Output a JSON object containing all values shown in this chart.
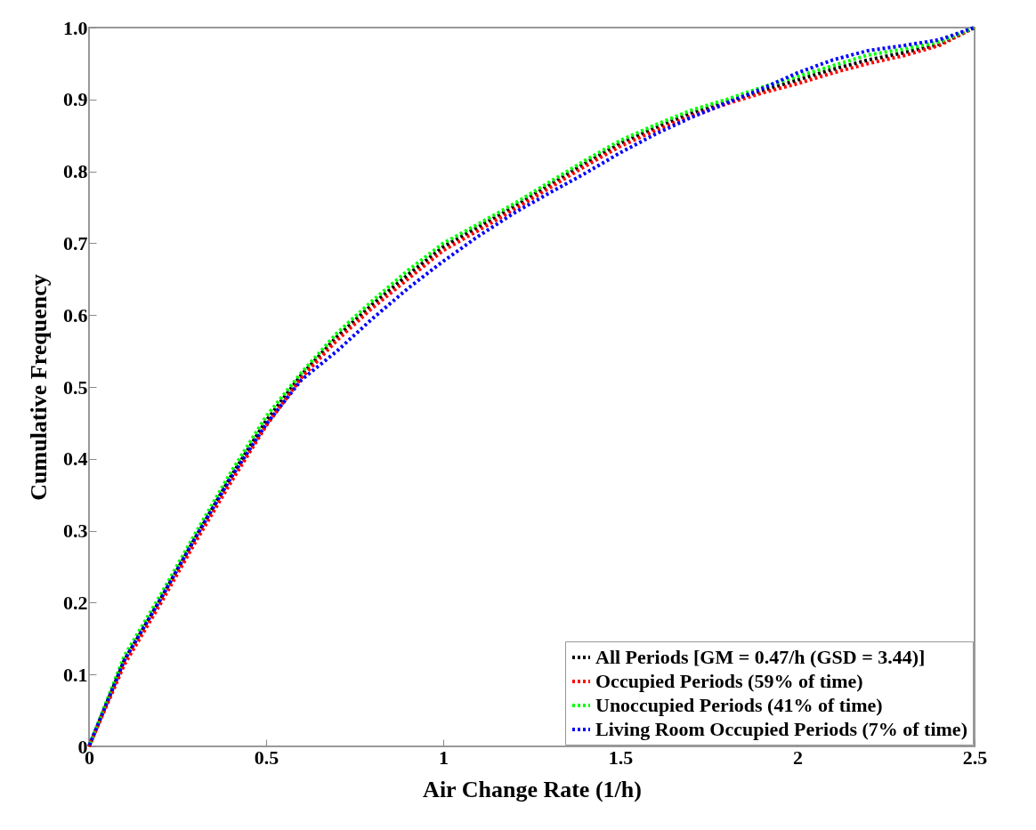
{
  "chart_data": {
    "type": "line",
    "xlabel": "Air Change Rate (1/h)",
    "ylabel": "Cumulative Frequency",
    "x": [
      0,
      0.1,
      0.2,
      0.3,
      0.4,
      0.5,
      0.6,
      0.7,
      0.8,
      0.9,
      1.0,
      1.1,
      1.2,
      1.3,
      1.4,
      1.5,
      1.6,
      1.7,
      1.8,
      1.9,
      2.0,
      2.1,
      2.2,
      2.3,
      2.4,
      2.5
    ],
    "series": [
      {
        "name": "All Periods [GM = 0.47/h (GSD = 3.44)]",
        "color": "#000000",
        "values": [
          0,
          0.12,
          0.203,
          0.29,
          0.375,
          0.453,
          0.517,
          0.57,
          0.615,
          0.656,
          0.695,
          0.723,
          0.751,
          0.781,
          0.811,
          0.839,
          0.861,
          0.881,
          0.897,
          0.912,
          0.927,
          0.942,
          0.955,
          0.965,
          0.977,
          1.0
        ]
      },
      {
        "name": "Occupied Periods (59% of time)",
        "color": "#ff0000",
        "values": [
          0,
          0.114,
          0.197,
          0.284,
          0.367,
          0.446,
          0.513,
          0.565,
          0.61,
          0.65,
          0.69,
          0.718,
          0.747,
          0.777,
          0.807,
          0.835,
          0.857,
          0.877,
          0.894,
          0.909,
          0.922,
          0.937,
          0.95,
          0.961,
          0.975,
          1.0
        ]
      },
      {
        "name": "Unoccupied Periods (41% of time)",
        "color": "#00ff00",
        "values": [
          0,
          0.126,
          0.209,
          0.296,
          0.381,
          0.459,
          0.52,
          0.575,
          0.62,
          0.662,
          0.7,
          0.727,
          0.755,
          0.785,
          0.815,
          0.843,
          0.865,
          0.885,
          0.9,
          0.917,
          0.932,
          0.947,
          0.962,
          0.97,
          0.98,
          1.0
        ]
      },
      {
        "name": "Living Room Occupied Periods (7% of time)",
        "color": "#0000ff",
        "values": [
          0,
          0.12,
          0.203,
          0.29,
          0.373,
          0.448,
          0.51,
          0.55,
          0.595,
          0.637,
          0.675,
          0.71,
          0.742,
          0.77,
          0.797,
          0.826,
          0.852,
          0.875,
          0.895,
          0.915,
          0.937,
          0.955,
          0.968,
          0.975,
          0.983,
          1.0
        ]
      }
    ],
    "xlim": [
      0,
      2.5
    ],
    "xticks": [
      0,
      0.5,
      1,
      1.5,
      2,
      2.5
    ],
    "ylim": [
      0,
      1
    ],
    "yticks": [
      0,
      0.1,
      0.2,
      0.3,
      0.4,
      0.5,
      0.6,
      0.7,
      0.8,
      0.9,
      {
        "value": 1,
        "label": "1.0"
      }
    ],
    "line_style": "dotted",
    "legend": "bottom right",
    "grid": false
  }
}
